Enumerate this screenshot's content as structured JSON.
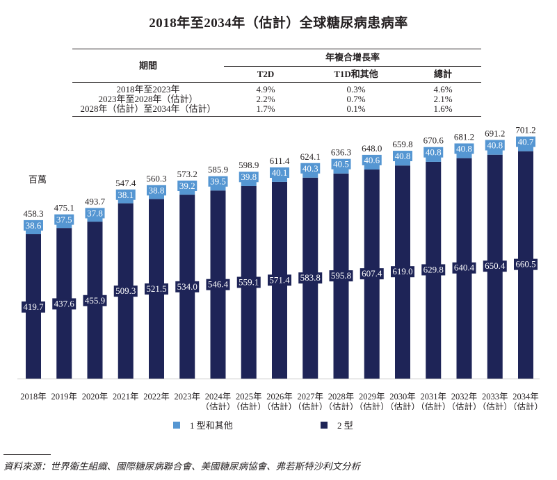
{
  "title": "2018年至2034年（估計）全球糖尿病患病率",
  "cagr_table": {
    "period_header": "期間",
    "group_header": "年複合增長率",
    "columns": [
      "T2D",
      "T1D和其他",
      "總計"
    ],
    "rows": [
      {
        "period": "2018年至2023年",
        "t2d": "4.9%",
        "t1d": "0.3%",
        "total": "4.6%"
      },
      {
        "period": "2023年至2028年（估計）",
        "t2d": "2.2%",
        "t1d": "0.7%",
        "total": "2.1%"
      },
      {
        "period": "2028年（估計）至2034年（估計）",
        "t2d": "1.7%",
        "t1d": "0.1%",
        "total": "1.6%"
      }
    ]
  },
  "chart_data": {
    "type": "bar",
    "stacked": true,
    "title": "2018年至2034年（估計）全球糖尿病患病率",
    "ylabel": "百萬",
    "xlabel": "",
    "ylim": [
      0,
      720
    ],
    "grid": false,
    "legend_position": "bottom",
    "categories": [
      "2018年",
      "2019年",
      "2020年",
      "2021年",
      "2022年",
      "2023年",
      "2024年",
      "2025年",
      "2026年",
      "2027年",
      "2028年",
      "2029年",
      "2030年",
      "2031年",
      "2032年",
      "2033年",
      "2034年"
    ],
    "category_sublabels": [
      "",
      "",
      "",
      "",
      "",
      "",
      "（估計）",
      "（估計）",
      "（估計）",
      "（估計）",
      "（估計）",
      "（估計）",
      "（估計）",
      "（估計）",
      "（估計）",
      "（估計）",
      "（估計）"
    ],
    "series": [
      {
        "name": "2 型",
        "color": "#1e2457",
        "values": [
          419.7,
          437.6,
          455.9,
          509.3,
          521.5,
          534.0,
          546.4,
          559.1,
          571.4,
          583.8,
          595.8,
          607.4,
          619.0,
          629.8,
          640.4,
          650.4,
          660.5
        ]
      },
      {
        "name": "1 型和其他",
        "color": "#5596d2",
        "values": [
          38.6,
          37.5,
          37.8,
          38.1,
          38.8,
          39.2,
          39.5,
          39.8,
          40.1,
          40.3,
          40.5,
          40.6,
          40.8,
          40.8,
          40.8,
          40.8,
          40.7
        ]
      }
    ],
    "totals": [
      458.3,
      475.1,
      493.7,
      547.4,
      560.3,
      573.2,
      585.9,
      598.9,
      611.4,
      624.1,
      636.3,
      648.0,
      659.8,
      670.6,
      681.2,
      691.2,
      701.2
    ]
  },
  "legend": [
    {
      "label": "1 型和其他",
      "color": "#5596d2"
    },
    {
      "label": "2 型",
      "color": "#1e2457"
    }
  ],
  "source": "資料來源：世界衛生組織、國際糖尿病聯合會、美國糖尿病協會、弗若斯特沙利文分析"
}
